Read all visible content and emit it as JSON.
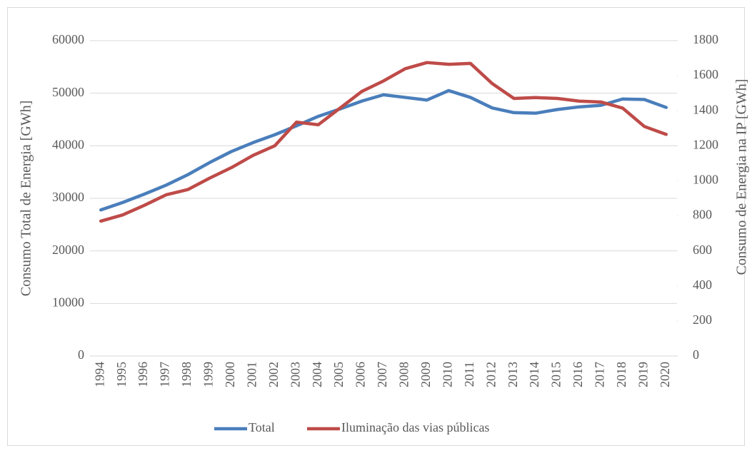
{
  "chart_data": {
    "type": "line",
    "categories": [
      "1994",
      "1995",
      "1996",
      "1997",
      "1998",
      "1999",
      "2000",
      "2001",
      "2002",
      "2003",
      "2004",
      "2005",
      "2006",
      "2007",
      "2008",
      "2009",
      "2010",
      "2011",
      "2012",
      "2013",
      "2014",
      "2015",
      "2016",
      "2017",
      "2018",
      "2019",
      "2020"
    ],
    "series": [
      {
        "name": "Total",
        "color": "#4a7ebb",
        "values": [
          27800,
          29200,
          30800,
          32500,
          34500,
          36800,
          38900,
          40600,
          42100,
          43800,
          45600,
          47000,
          48500,
          49700,
          49200,
          48700,
          50500,
          49200,
          47200,
          46300,
          46200,
          46900,
          47400,
          47700,
          48900,
          48800,
          47300
        ]
      },
      {
        "name": "Iluminação das vias públicas",
        "color": "#be4b48",
        "axis": "y2",
        "values": [
          770,
          805,
          860,
          920,
          950,
          1015,
          1075,
          1145,
          1200,
          1335,
          1320,
          1415,
          1510,
          1570,
          1640,
          1675,
          1665,
          1670,
          1555,
          1470,
          1475,
          1470,
          1455,
          1450,
          1415,
          1310,
          1265
        ]
      }
    ],
    "ylabel": "Consumo  Total de Energia [GWh]",
    "y2label": "Consumo de Energia na IP [GWh]",
    "ylim": [
      0,
      60000
    ],
    "yticks": [
      0,
      10000,
      20000,
      30000,
      40000,
      50000,
      60000
    ],
    "y2lim": [
      0,
      1800
    ],
    "y2ticks": [
      0,
      200,
      400,
      600,
      800,
      1000,
      1200,
      1400,
      1600,
      1800
    ],
    "grid": true,
    "legend": "bottom"
  }
}
